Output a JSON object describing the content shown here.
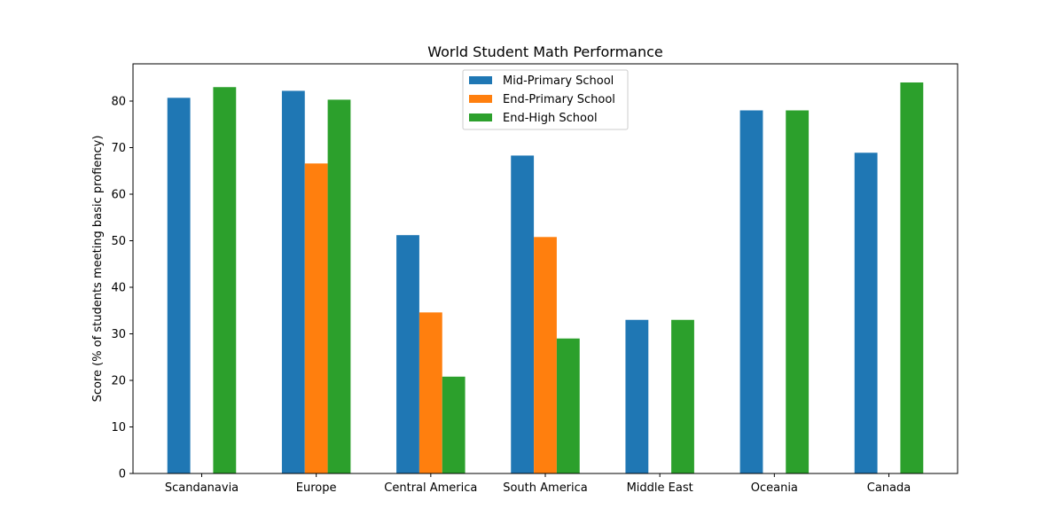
{
  "chart_data": {
    "type": "bar",
    "title": "World Student Math Performance",
    "xlabel": "",
    "ylabel": "Score (% of students meeting basic profiency)",
    "categories": [
      "Scandanavia",
      "Europe",
      "Central America",
      "South America",
      "Middle East",
      "Oceania",
      "Canada"
    ],
    "series": [
      {
        "name": "Mid-Primary School",
        "color": "#1f77b4",
        "values": [
          80.7,
          82.2,
          51.2,
          68.3,
          33.0,
          78.0,
          68.9
        ]
      },
      {
        "name": "End-Primary School",
        "color": "#ff7f0e",
        "values": [
          null,
          66.6,
          34.6,
          50.8,
          null,
          null,
          null
        ]
      },
      {
        "name": "End-High School",
        "color": "#2ca02c",
        "values": [
          83.0,
          80.3,
          20.8,
          29.0,
          33.0,
          78.0,
          84.0
        ]
      }
    ],
    "ylim": [
      0,
      88
    ],
    "yticks": [
      0,
      10,
      20,
      30,
      40,
      50,
      60,
      70,
      80
    ],
    "grid": false,
    "legend_position": "upper center"
  }
}
